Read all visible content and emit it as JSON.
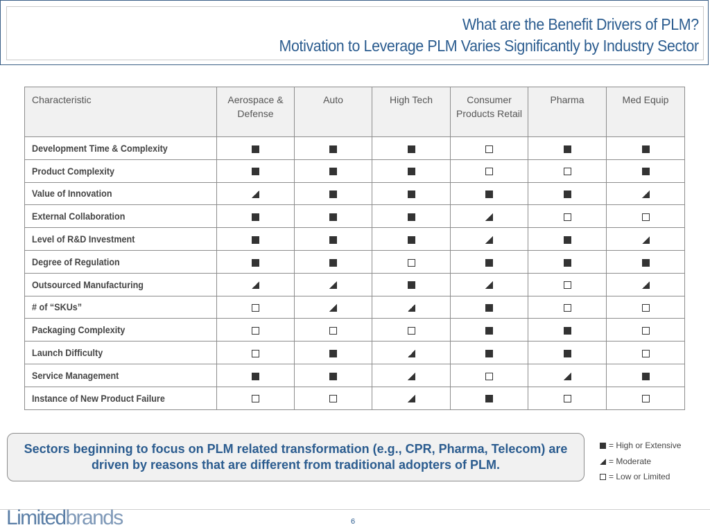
{
  "title": {
    "line1": "What are the Benefit Drivers of PLM?",
    "line2": "Motivation to Leverage PLM Varies Significantly by Industry Sector"
  },
  "table": {
    "headers": [
      "Characteristic",
      "Aerospace & Defense",
      "Auto",
      "High Tech",
      "Consumer Products Retail",
      "Pharma",
      "Med Equip"
    ],
    "rows": [
      {
        "label": "Development Time & Complexity",
        "marks": [
          "high",
          "high",
          "high",
          "low",
          "high",
          "high"
        ]
      },
      {
        "label": "Product Complexity",
        "marks": [
          "high",
          "high",
          "high",
          "low",
          "low",
          "high"
        ]
      },
      {
        "label": "Value of Innovation",
        "marks": [
          "mod",
          "high",
          "high",
          "high",
          "high",
          "mod"
        ]
      },
      {
        "label": "External Collaboration",
        "marks": [
          "high",
          "high",
          "high",
          "mod",
          "low",
          "low"
        ]
      },
      {
        "label": "Level of R&D Investment",
        "marks": [
          "high",
          "high",
          "high",
          "mod",
          "high",
          "mod"
        ]
      },
      {
        "label": "Degree of Regulation",
        "marks": [
          "high",
          "high",
          "low",
          "high",
          "high",
          "high"
        ]
      },
      {
        "label": "Outsourced Manufacturing",
        "marks": [
          "mod",
          "mod",
          "high",
          "mod",
          "low",
          "mod"
        ]
      },
      {
        "label": "# of “SKUs”",
        "marks": [
          "low",
          "mod",
          "mod",
          "high",
          "low",
          "low"
        ]
      },
      {
        "label": "Packaging Complexity",
        "marks": [
          "low",
          "low",
          "low",
          "high",
          "high",
          "low"
        ]
      },
      {
        "label": "Launch Difficulty",
        "marks": [
          "low",
          "high",
          "mod",
          "high",
          "high",
          "low"
        ]
      },
      {
        "label": "Service Management",
        "marks": [
          "high",
          "high",
          "mod",
          "low",
          "mod",
          "high"
        ]
      },
      {
        "label": "Instance of New Product Failure",
        "marks": [
          "low",
          "low",
          "mod",
          "high",
          "low",
          "low"
        ]
      }
    ]
  },
  "callout": {
    "text": "Sectors beginning to focus on PLM related transformation (e.g., CPR, Pharma, Telecom) are driven by reasons that are different from traditional adopters of PLM."
  },
  "legend": {
    "high": "= High or Extensive",
    "moderate": "= Moderate",
    "low": "= Low or Limited"
  },
  "footer": {
    "logo_part1": "Limited",
    "logo_part2": "brands",
    "page_number": "6"
  }
}
